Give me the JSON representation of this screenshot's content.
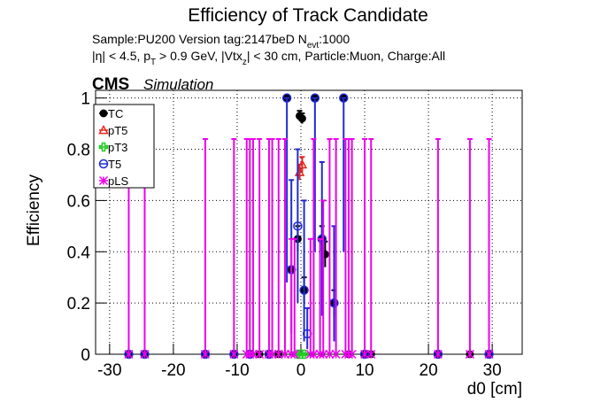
{
  "chart_data": {
    "type": "scatter",
    "title": "Efficiency of Track Candidate",
    "subtitle_1": [
      "Sample:PU200   Version tag:2147beD  N",
      "evt",
      ":1000"
    ],
    "subtitle_2": [
      "|η| < 4.5, p",
      "T",
      " > 0.9 GeV, |Vtx",
      "z",
      "| < 30 cm, Particle:Muon, Charge:All"
    ],
    "cms_label": "CMS",
    "cms_sublabel": "Simulation",
    "x_label": "d0 [cm]",
    "y_label": "Efficiency",
    "xlim": [
      -32.2,
      34.7
    ],
    "xticks": [
      -30,
      -20,
      -10,
      0,
      10,
      20,
      30
    ],
    "ylim": [
      0,
      1.03
    ],
    "yticks": [
      0,
      0.2,
      0.4,
      0.6,
      0.8,
      1
    ],
    "grid": true,
    "legend": "upper left",
    "series": [
      {
        "name": "TC",
        "color": "#000000",
        "marker": "filled-circle",
        "x": [
          -27,
          -24.5,
          -15,
          -10.5,
          -8,
          -6.5,
          -5,
          -3.5,
          -2.2,
          -1.5,
          -0.5,
          -0.2,
          0.2,
          0.5,
          2.2,
          3.3,
          3.8,
          5.2,
          6.7,
          7.5,
          10,
          11,
          21.5,
          26.5,
          29.5
        ],
        "values": [
          0,
          0,
          0,
          0,
          0,
          0,
          0,
          0,
          1,
          0.33,
          0.45,
          0.93,
          0.92,
          0.25,
          1,
          0.45,
          0.39,
          0.2,
          1,
          0,
          0,
          0,
          0,
          0,
          0
        ],
        "err_low": [
          0,
          0,
          0,
          0,
          0,
          0,
          0,
          0,
          0,
          0,
          0.05,
          0.02,
          0.02,
          0.05,
          0,
          0.05,
          0.05,
          0.05,
          0,
          0,
          0,
          0,
          0,
          0,
          0
        ],
        "err_high": [
          0,
          0,
          0,
          0,
          0,
          0,
          0,
          0,
          0,
          0,
          0.05,
          0.02,
          0.02,
          0.05,
          0,
          0.05,
          0.05,
          0.05,
          0,
          0,
          0,
          0,
          0,
          0,
          0
        ]
      },
      {
        "name": "pT5",
        "color": "#e8281e",
        "marker": "open-triangle",
        "x": [
          -0.2,
          0.2
        ],
        "values": [
          0.71,
          0.74
        ],
        "err_low": [
          0.03,
          0.03
        ],
        "err_high": [
          0.03,
          0.03
        ]
      },
      {
        "name": "pT3",
        "color": "#22cc22",
        "marker": "open-cross",
        "x": [
          -0.5,
          0,
          0.5
        ],
        "values": [
          0,
          0,
          0
        ],
        "err_low": [
          0,
          0,
          0
        ],
        "err_high": [
          0,
          0,
          0
        ]
      },
      {
        "name": "T5",
        "color": "#1f2bd6",
        "marker": "open-circle",
        "x": [
          -27,
          -24.5,
          -15,
          -10.5,
          -8,
          -5,
          -2.2,
          -1.5,
          -0.5,
          0.5,
          1,
          2.2,
          3.3,
          5.2,
          6.7,
          10,
          21.5,
          29.5
        ],
        "values": [
          0,
          0,
          0,
          0,
          0,
          0,
          1,
          0.33,
          0.5,
          0.25,
          0.08,
          1,
          0.45,
          0.2,
          1,
          0,
          0,
          0
        ],
        "err_low": [
          0,
          0,
          0,
          0,
          0,
          0,
          0.72,
          0.25,
          0.3,
          0.2,
          0.06,
          0.6,
          0.3,
          0.15,
          0.6,
          0,
          0,
          0
        ],
        "err_high": [
          0,
          0,
          0,
          0,
          0,
          0,
          0,
          0.35,
          0.3,
          0.35,
          0.1,
          0,
          0.3,
          0.3,
          0,
          0,
          0,
          0
        ]
      },
      {
        "name": "pLS",
        "color": "#ee00ee",
        "marker": "open-star",
        "x": [
          -27,
          -24.5,
          -15,
          -10.5,
          -8.5,
          -8,
          -7.5,
          -6.5,
          -5,
          -4.5,
          -3.5,
          -2.5,
          -1.5,
          -1,
          1.5,
          2,
          3,
          3.5,
          4.5,
          5.5,
          7,
          7.5,
          8,
          10,
          11,
          21.5,
          26.5,
          29.5
        ],
        "values": [
          0,
          0,
          0,
          0,
          0,
          0,
          0,
          0,
          0,
          0,
          0,
          0,
          0,
          0,
          0,
          0,
          0,
          0,
          0,
          0,
          0,
          0,
          0,
          0,
          0,
          0,
          0,
          0
        ],
        "err_low": [
          0,
          0,
          0,
          0,
          0,
          0,
          0,
          0,
          0,
          0,
          0,
          0,
          0,
          0,
          0,
          0,
          0,
          0,
          0,
          0,
          0,
          0,
          0,
          0,
          0,
          0,
          0,
          0
        ],
        "err_high": [
          0.84,
          0.84,
          0.84,
          0.84,
          0.84,
          0.84,
          0.84,
          0.84,
          0.84,
          0.84,
          0.84,
          0.84,
          0.45,
          0.45,
          0.45,
          0.84,
          0.45,
          0.6,
          0.84,
          0.84,
          0.84,
          0.84,
          0.84,
          0.84,
          0.84,
          0.84,
          0.84,
          0.84
        ]
      }
    ]
  }
}
